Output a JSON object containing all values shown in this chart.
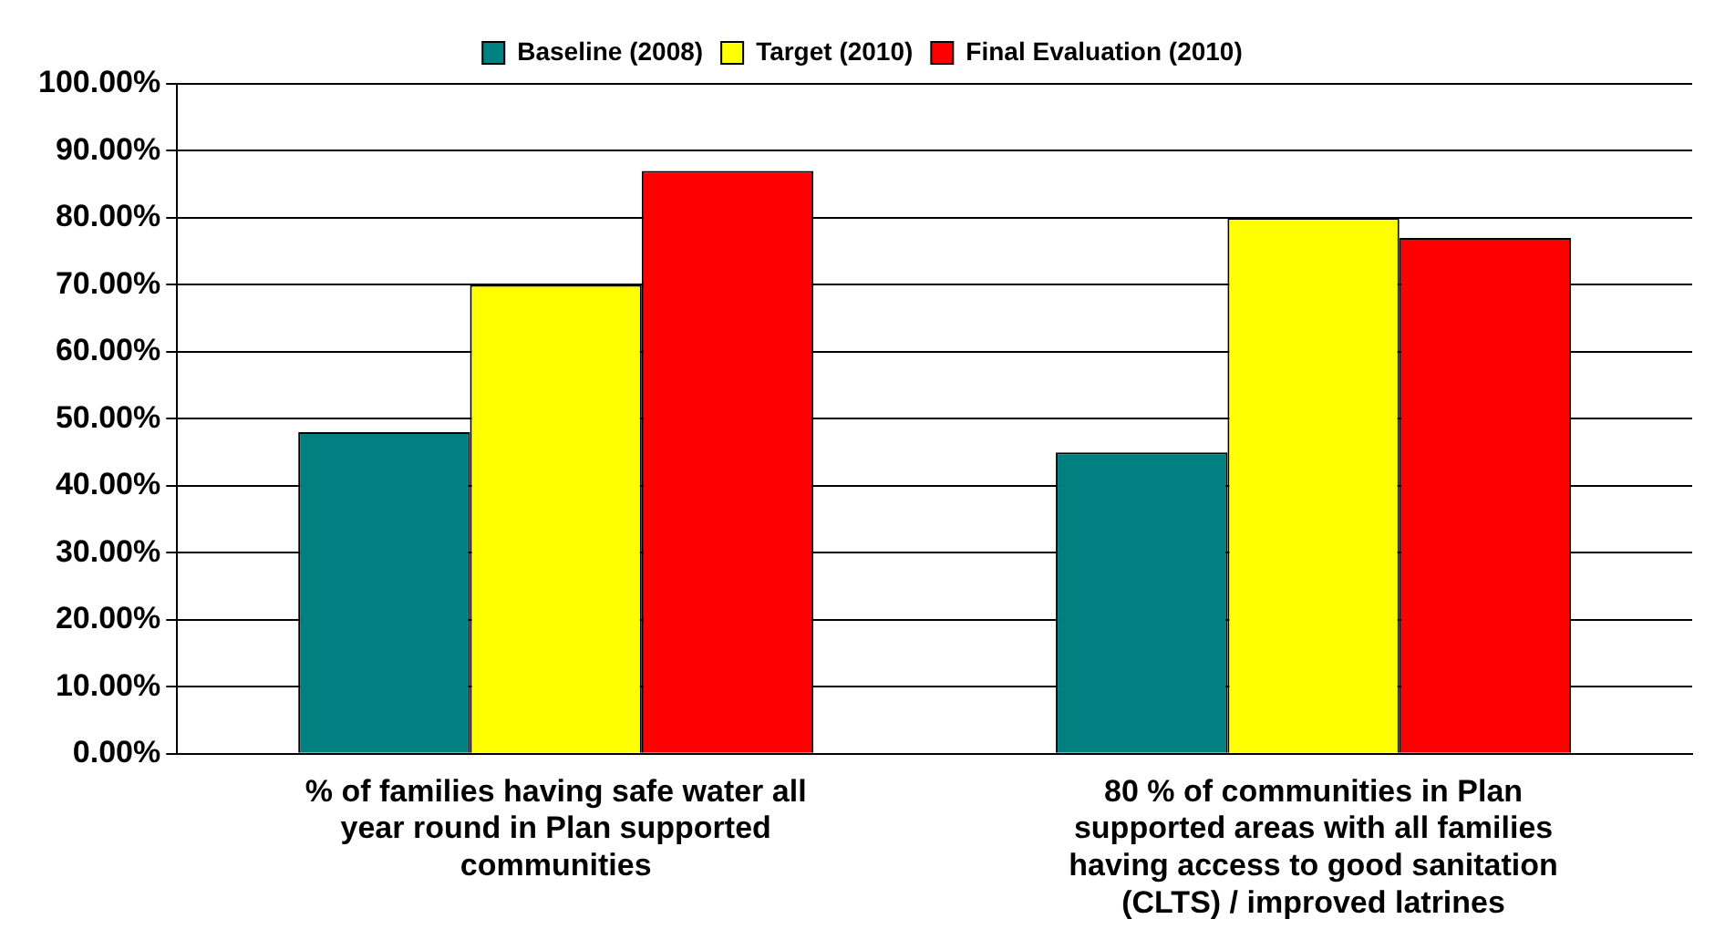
{
  "chart_data": {
    "type": "bar",
    "categories": [
      "% of families having safe water all year round in Plan supported communities",
      "80 % of communities in Plan supported areas with all families having access to good sanitation (CLTS) / improved latrines"
    ],
    "series": [
      {
        "name": "Baseline (2008)",
        "color": "#008080",
        "values": [
          48,
          45
        ]
      },
      {
        "name": "Target (2010)",
        "color": "#ffff00",
        "values": [
          70,
          80
        ]
      },
      {
        "name": "Final Evaluation (2010)",
        "color": "#ff0000",
        "values": [
          87,
          77
        ]
      }
    ],
    "ylim": [
      0,
      100
    ],
    "yticks": [
      {
        "value": 0,
        "label": "0.00%"
      },
      {
        "value": 10,
        "label": "10.00%"
      },
      {
        "value": 20,
        "label": "20.00%"
      },
      {
        "value": 30,
        "label": "30.00%"
      },
      {
        "value": 40,
        "label": "40.00%"
      },
      {
        "value": 50,
        "label": "50.00%"
      },
      {
        "value": 60,
        "label": "60.00%"
      },
      {
        "value": 70,
        "label": "70.00%"
      },
      {
        "value": 80,
        "label": "80.00%"
      },
      {
        "value": 90,
        "label": "90.00%"
      },
      {
        "value": 100,
        "label": "100.00%"
      }
    ],
    "grid": "y",
    "legend": "top"
  }
}
